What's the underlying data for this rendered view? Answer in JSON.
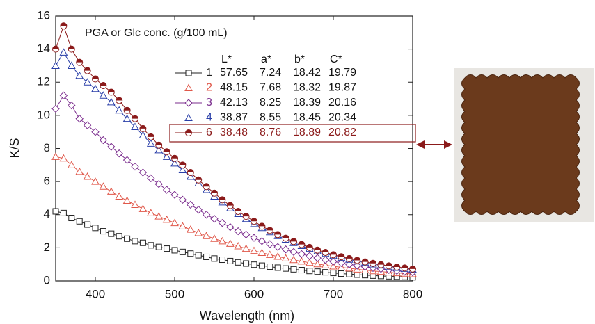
{
  "chart_data": {
    "type": "line",
    "xlabel": "Wavelength (nm)",
    "ylabel": "K/S",
    "legend_title": "PGA or Glc conc. (g/100 mL)",
    "table_headers": [
      "L*",
      "a*",
      "b*",
      "C*"
    ],
    "xlim": [
      350,
      800
    ],
    "xticks": [
      400,
      500,
      600,
      700,
      800
    ],
    "ylim": [
      0,
      16
    ],
    "yticks": [
      0,
      2,
      4,
      6,
      8,
      10,
      12,
      14,
      16
    ],
    "x": [
      350,
      360,
      370,
      380,
      390,
      400,
      410,
      420,
      430,
      440,
      450,
      460,
      470,
      480,
      490,
      500,
      510,
      520,
      530,
      540,
      550,
      560,
      570,
      580,
      590,
      600,
      610,
      620,
      630,
      640,
      650,
      660,
      670,
      680,
      690,
      700,
      710,
      720,
      730,
      740,
      750,
      760,
      770,
      780,
      790,
      800
    ],
    "series": [
      {
        "name": "1",
        "color": "#222222",
        "marker": "square",
        "table_values": [
          57.65,
          7.24,
          18.42,
          19.79
        ],
        "values": [
          4.2,
          4.1,
          3.8,
          3.6,
          3.4,
          3.2,
          3.0,
          2.85,
          2.7,
          2.55,
          2.4,
          2.3,
          2.15,
          2.05,
          1.95,
          1.85,
          1.75,
          1.65,
          1.55,
          1.45,
          1.35,
          1.28,
          1.2,
          1.12,
          1.05,
          0.98,
          0.92,
          0.86,
          0.8,
          0.75,
          0.7,
          0.65,
          0.6,
          0.56,
          0.52,
          0.48,
          0.44,
          0.41,
          0.38,
          0.35,
          0.32,
          0.3,
          0.28,
          0.26,
          0.24,
          0.22
        ]
      },
      {
        "name": "2",
        "color": "#e0584a",
        "marker": "triangle",
        "table_values": [
          48.15,
          7.68,
          18.32,
          19.87
        ],
        "values": [
          7.5,
          7.4,
          7.0,
          6.6,
          6.3,
          6.0,
          5.7,
          5.4,
          5.1,
          4.85,
          4.6,
          4.35,
          4.1,
          3.9,
          3.7,
          3.5,
          3.3,
          3.1,
          2.9,
          2.72,
          2.55,
          2.4,
          2.25,
          2.1,
          1.95,
          1.82,
          1.7,
          1.58,
          1.47,
          1.37,
          1.27,
          1.18,
          1.1,
          1.02,
          0.95,
          0.88,
          0.82,
          0.76,
          0.7,
          0.65,
          0.6,
          0.56,
          0.52,
          0.48,
          0.45,
          0.42
        ]
      },
      {
        "name": "3",
        "color": "#7b2d8e",
        "marker": "diamond",
        "table_values": [
          42.13,
          8.25,
          18.39,
          20.16
        ],
        "values": [
          10.4,
          11.2,
          10.6,
          9.8,
          9.4,
          9.0,
          8.5,
          8.1,
          7.7,
          7.3,
          6.9,
          6.55,
          6.2,
          5.85,
          5.5,
          5.2,
          4.9,
          4.6,
          4.3,
          4.0,
          3.75,
          3.5,
          3.25,
          3.0,
          2.8,
          2.6,
          2.4,
          2.22,
          2.05,
          1.9,
          1.75,
          1.62,
          1.5,
          1.38,
          1.27,
          1.17,
          1.08,
          1.0,
          0.92,
          0.85,
          0.78,
          0.72,
          0.66,
          0.61,
          0.56,
          0.52
        ]
      },
      {
        "name": "4",
        "color": "#2a3fa8",
        "marker": "triangle",
        "table_values": [
          38.87,
          8.55,
          18.45,
          20.34
        ],
        "values": [
          13.0,
          13.8,
          13.0,
          12.4,
          12.0,
          11.6,
          11.2,
          10.8,
          10.3,
          9.8,
          9.3,
          8.8,
          8.3,
          7.9,
          7.5,
          7.1,
          6.7,
          6.3,
          5.9,
          5.5,
          5.1,
          4.75,
          4.4,
          4.05,
          3.75,
          3.45,
          3.2,
          2.95,
          2.72,
          2.5,
          2.3,
          2.12,
          1.95,
          1.8,
          1.65,
          1.52,
          1.4,
          1.29,
          1.19,
          1.1,
          1.01,
          0.94,
          0.87,
          0.8,
          0.74,
          0.68
        ]
      },
      {
        "name": "6",
        "color": "#8b1a1a",
        "marker": "halfcircle",
        "table_values": [
          38.48,
          8.76,
          18.89,
          20.82
        ],
        "values": [
          14.0,
          15.4,
          14.0,
          13.2,
          12.7,
          12.2,
          11.8,
          11.4,
          10.9,
          10.3,
          9.8,
          9.2,
          8.7,
          8.2,
          7.8,
          7.4,
          7.0,
          6.55,
          6.1,
          5.7,
          5.3,
          4.9,
          4.55,
          4.2,
          3.9,
          3.6,
          3.3,
          3.05,
          2.8,
          2.58,
          2.38,
          2.2,
          2.02,
          1.86,
          1.72,
          1.58,
          1.46,
          1.35,
          1.24,
          1.15,
          1.06,
          0.98,
          0.91,
          0.84,
          0.78,
          0.72
        ]
      }
    ]
  }
}
